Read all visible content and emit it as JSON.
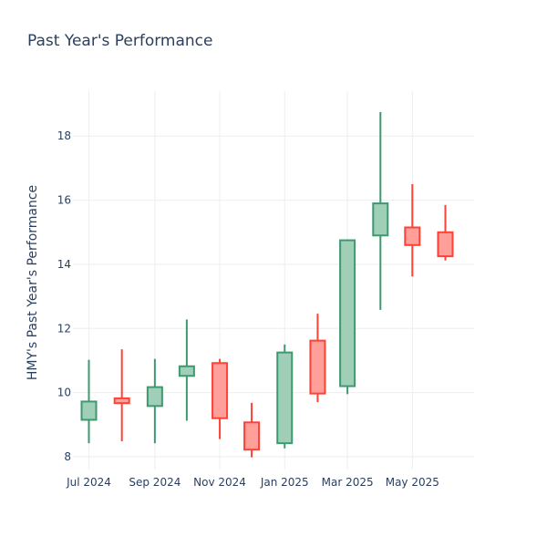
{
  "chart_data": {
    "type": "candlestick",
    "title": "Past Year's Performance",
    "ylabel": "HMY's Past Year's Performance",
    "xlabel": "",
    "ylim": [
      7.6,
      19.4
    ],
    "xlim": [
      "2024-06-16",
      "2025-06-28"
    ],
    "yticks": [
      8,
      10,
      12,
      14,
      16,
      18
    ],
    "xticks": [
      {
        "date": "2024-07-01",
        "label": "Jul 2024"
      },
      {
        "date": "2024-09-01",
        "label": "Sep 2024"
      },
      {
        "date": "2024-11-01",
        "label": "Nov 2024"
      },
      {
        "date": "2025-01-01",
        "label": "Jan 2025"
      },
      {
        "date": "2025-03-01",
        "label": "Mar 2025"
      },
      {
        "date": "2025-05-01",
        "label": "May 2025"
      }
    ],
    "colors": {
      "increasing_line": "#3d9970",
      "increasing_fill": "#9fcfb6",
      "decreasing_line": "#ff4136",
      "decreasing_fill": "#ff9f9a"
    },
    "candles": [
      {
        "date": "2024-07-01",
        "open": 9.15,
        "high": 11.02,
        "low": 8.42,
        "close": 9.72
      },
      {
        "date": "2024-08-01",
        "open": 9.82,
        "high": 11.35,
        "low": 8.48,
        "close": 9.67
      },
      {
        "date": "2024-09-01",
        "open": 9.58,
        "high": 11.05,
        "low": 8.42,
        "close": 10.17
      },
      {
        "date": "2024-10-01",
        "open": 10.52,
        "high": 12.28,
        "low": 9.12,
        "close": 10.82
      },
      {
        "date": "2024-11-01",
        "open": 10.92,
        "high": 11.05,
        "low": 8.55,
        "close": 9.2
      },
      {
        "date": "2024-12-01",
        "open": 9.07,
        "high": 9.68,
        "low": 7.98,
        "close": 8.22
      },
      {
        "date": "2025-01-01",
        "open": 8.42,
        "high": 11.5,
        "low": 8.26,
        "close": 11.25
      },
      {
        "date": "2025-02-01",
        "open": 11.62,
        "high": 12.46,
        "low": 9.7,
        "close": 9.97
      },
      {
        "date": "2025-03-01",
        "open": 10.2,
        "high": 14.78,
        "low": 9.95,
        "close": 14.75
      },
      {
        "date": "2025-04-01",
        "open": 14.9,
        "high": 18.75,
        "low": 12.58,
        "close": 15.9
      },
      {
        "date": "2025-05-01",
        "open": 15.15,
        "high": 16.5,
        "low": 13.62,
        "close": 14.6
      },
      {
        "date": "2025-06-01",
        "open": 15.0,
        "high": 15.85,
        "low": 14.12,
        "close": 14.25
      }
    ]
  }
}
